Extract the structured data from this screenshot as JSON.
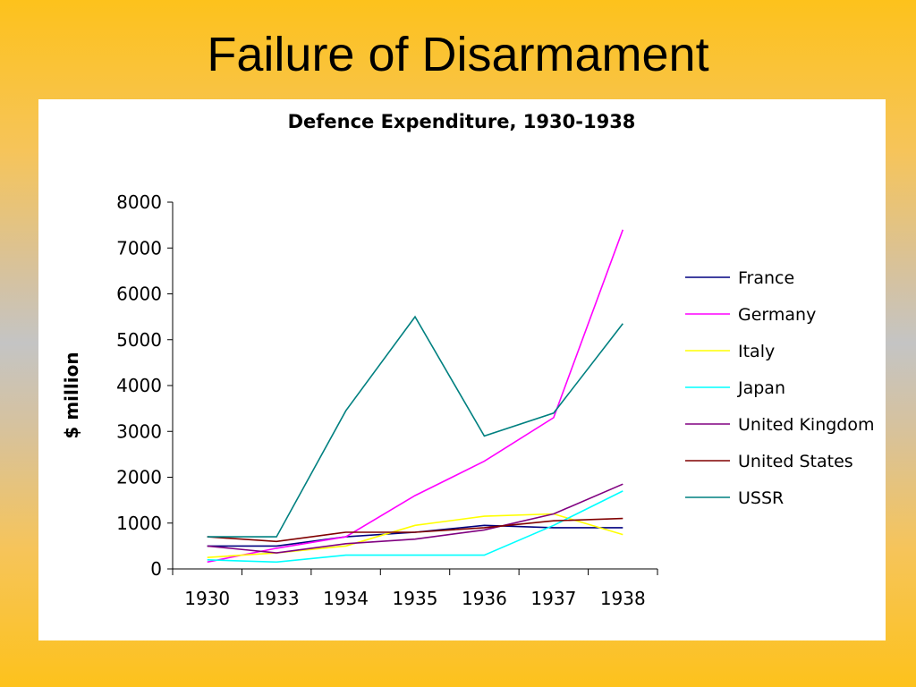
{
  "slide": {
    "title": "Failure of Disarmament"
  },
  "chart_data": {
    "type": "line",
    "title": "Defence Expenditure, 1930-1938",
    "xlabel": "",
    "ylabel": "$ million",
    "categories": [
      "1930",
      "1933",
      "1934",
      "1935",
      "1936",
      "1937",
      "1938"
    ],
    "ylim": [
      0,
      8000
    ],
    "yticks": [
      0,
      1000,
      2000,
      3000,
      4000,
      5000,
      6000,
      7000,
      8000
    ],
    "grid": false,
    "legend_position": "right",
    "series": [
      {
        "name": "France",
        "color": "#000080",
        "values": [
          500,
          500,
          700,
          800,
          950,
          900,
          900
        ]
      },
      {
        "name": "Germany",
        "color": "#ff00ff",
        "values": [
          150,
          450,
          700,
          1600,
          2350,
          3300,
          7400
        ]
      },
      {
        "name": "Italy",
        "color": "#ffff00",
        "values": [
          250,
          350,
          500,
          950,
          1150,
          1200,
          750
        ]
      },
      {
        "name": "Japan",
        "color": "#00ffff",
        "values": [
          200,
          150,
          300,
          300,
          300,
          950,
          1700
        ]
      },
      {
        "name": "United Kingdom",
        "color": "#800080",
        "values": [
          500,
          350,
          550,
          650,
          850,
          1200,
          1850
        ]
      },
      {
        "name": "United States",
        "color": "#800000",
        "values": [
          700,
          600,
          800,
          800,
          900,
          1050,
          1100
        ]
      },
      {
        "name": "USSR",
        "color": "#008080",
        "values": [
          700,
          700,
          3450,
          5500,
          2900,
          3400,
          5350
        ]
      }
    ]
  }
}
